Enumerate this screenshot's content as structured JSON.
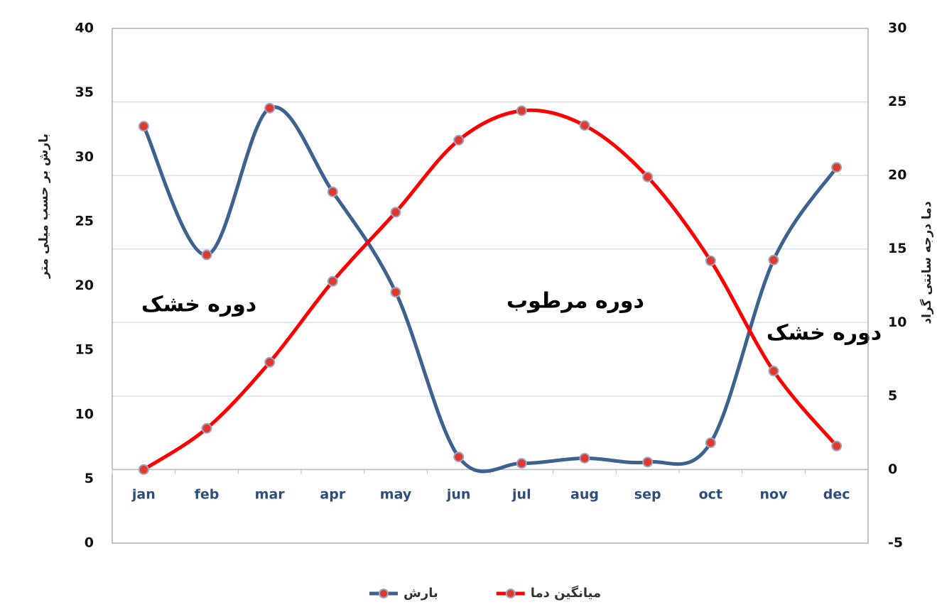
{
  "chart_data": {
    "type": "line",
    "y_label": "بارش بر حسب میلی متر",
    "y2_label": "دما درجه سانتی گراد",
    "annotations": [
      "دوره خشک",
      "دوره مرطوب",
      "دوره خشک"
    ],
    "categories": [
      "jan",
      "feb",
      "mar",
      "apr",
      "may",
      "jun",
      "jul",
      "aug",
      "sep",
      "oct",
      "nov",
      "dec"
    ],
    "series": [
      {
        "name": "بارش",
        "color": "#3e6290",
        "values": [
          32.4,
          22.4,
          33.8,
          27.3,
          19.5,
          6.7,
          6.2,
          6.6,
          6.3,
          7.8,
          22.0,
          29.2
        ]
      },
      {
        "name": "میانگین دما",
        "color": "#ff0000",
        "axis": "y2",
        "values": [
          0,
          2.8,
          7.3,
          12.8,
          17.5,
          22.4,
          24.4,
          23.4,
          19.9,
          14.2,
          6.7,
          1.6
        ]
      }
    ],
    "ylim": [
      0,
      40
    ],
    "yticks": [
      0,
      5,
      10,
      15,
      20,
      25,
      30,
      35,
      40
    ],
    "y2lim": [
      -5,
      30
    ],
    "y2ticks": [
      -5,
      0,
      5,
      10,
      15,
      20,
      25,
      30
    ],
    "grid": true,
    "smooth": true,
    "legend": "bottom"
  }
}
